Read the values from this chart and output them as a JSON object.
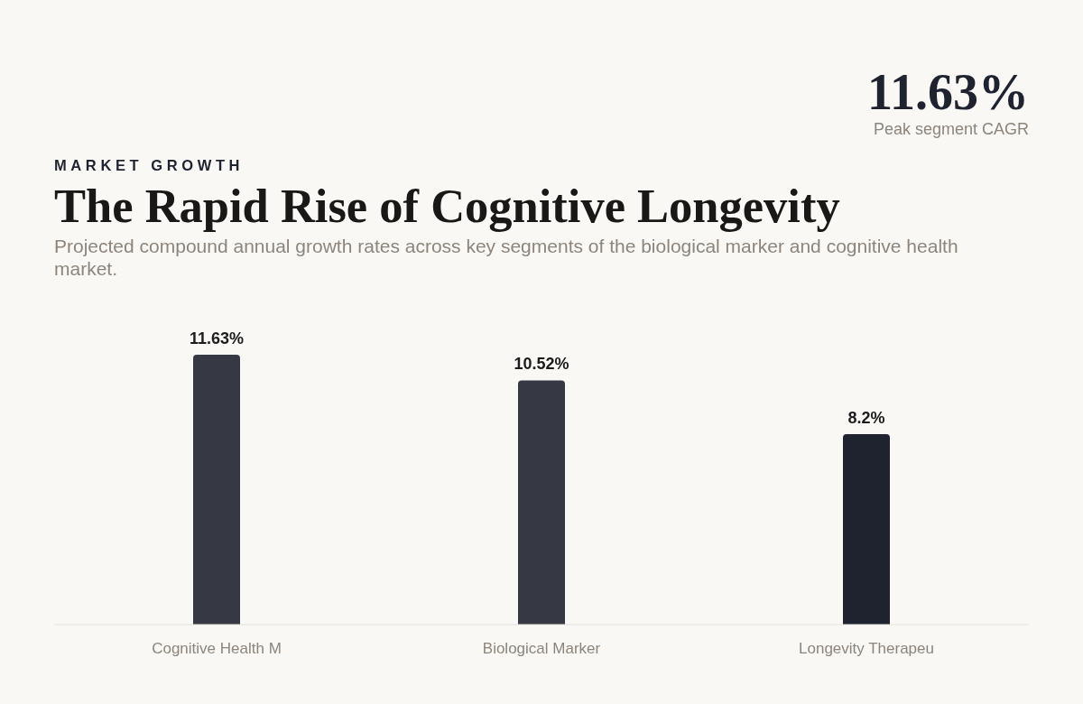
{
  "chart_data": {
    "type": "bar",
    "title": "The Rapid Rise of Cognitive Longevity",
    "subtitle": "Projected compound annual growth rates across key segments of the biological marker and cognitive health market.",
    "annotations": [
      "MARKET GROWTH",
      "11.63%",
      "Peak segment CAGR"
    ],
    "categories": [
      "Cognitive Health M",
      "Biological Marker",
      "Longevity Therapeu"
    ],
    "values": [
      11.63,
      10.52,
      8.2
    ],
    "colors": [
      "#363843",
      "#363843",
      "#1f2330"
    ],
    "value_labels": [
      "11.63%",
      "10.52%",
      "8.2%"
    ]
  }
}
